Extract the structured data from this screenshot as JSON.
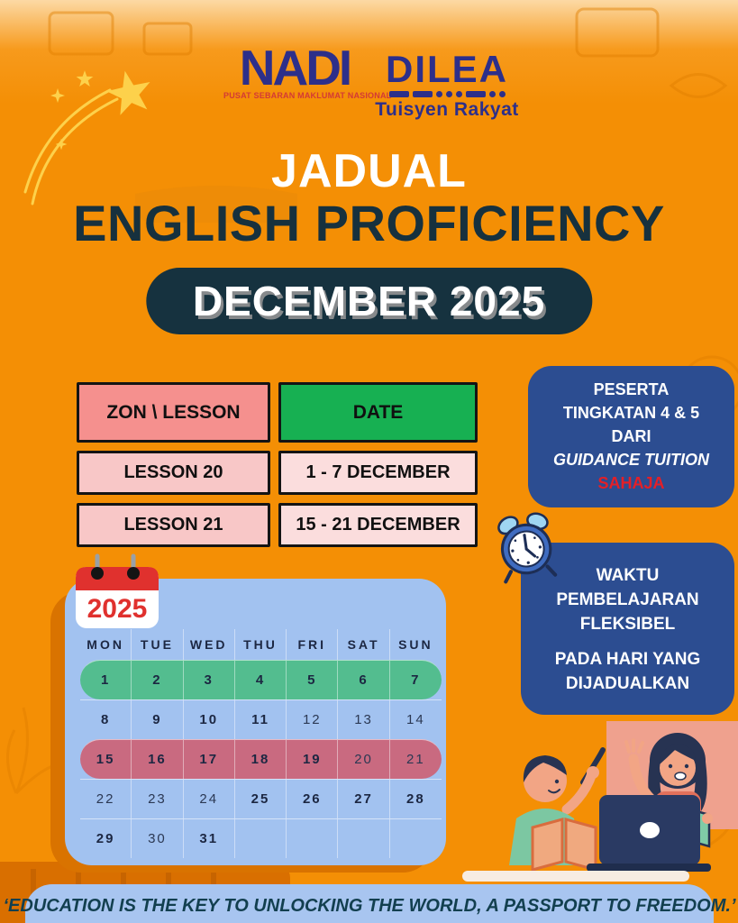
{
  "colors": {
    "background_orange": "#f48f05",
    "title_navy": "#17313e",
    "logo_indigo": "#2d2f8a",
    "nadi_tagline_red": "#d43a35",
    "table_header_pink": "#f5908e",
    "table_header_green": "#17b052",
    "table_row_pink": "#f8c7c7",
    "table_row_light_pink": "#fbdddd",
    "info_box_blue": "#2c4d91",
    "sahaja_red": "#e41f27",
    "calendar_blue": "#a2c2f0",
    "week_highlight_green": "#53bd8f",
    "week_highlight_rose": "#c96a80",
    "quote_banner_blue": "#a8c5f0"
  },
  "logos": {
    "nadi": {
      "name": "NADI",
      "tagline": "PUSAT SEBARAN MAKLUMAT NASIONAL"
    },
    "dilea": {
      "name": "DILEA",
      "tagline": "Tuisyen Rakyat"
    }
  },
  "header": {
    "title_top": "JADUAL",
    "title_main": "ENGLISH PROFICIENCY",
    "month_badge": "DECEMBER 2025"
  },
  "schedule": {
    "header": {
      "zon": "ZON \\ LESSON",
      "date": "DATE"
    },
    "rows": [
      {
        "lesson": "LESSON 20",
        "date": "1 - 7 DECEMBER"
      },
      {
        "lesson": "LESSON 21",
        "date": "15 - 21 DECEMBER"
      }
    ]
  },
  "info_box_participants": {
    "line1": "PESERTA",
    "line2": "TINGKATAN 4 & 5",
    "line3": "DARI",
    "line4": "GUIDANCE TUITION",
    "line5": "SAHAJA"
  },
  "info_box_schedule": {
    "para1": "WAKTU PEMBELAJARAN FLEKSIBEL",
    "para2": "PADA HARI YANG DIJADUALKAN"
  },
  "calendar": {
    "year": "2025",
    "day_headers": [
      "MON",
      "TUE",
      "WED",
      "THU",
      "FRI",
      "SAT",
      "SUN"
    ],
    "weeks": [
      {
        "highlight": "green",
        "days": [
          {
            "n": "1",
            "b": true
          },
          {
            "n": "2",
            "b": true
          },
          {
            "n": "3",
            "b": true
          },
          {
            "n": "4",
            "b": true
          },
          {
            "n": "5",
            "b": true
          },
          {
            "n": "6",
            "b": true
          },
          {
            "n": "7",
            "b": true
          }
        ]
      },
      {
        "highlight": null,
        "days": [
          {
            "n": "8",
            "b": true
          },
          {
            "n": "9",
            "b": true
          },
          {
            "n": "10",
            "b": true
          },
          {
            "n": "11",
            "b": true
          },
          {
            "n": "12",
            "b": false
          },
          {
            "n": "13",
            "b": false
          },
          {
            "n": "14",
            "b": false
          }
        ]
      },
      {
        "highlight": "rose",
        "days": [
          {
            "n": "15",
            "b": true
          },
          {
            "n": "16",
            "b": true
          },
          {
            "n": "17",
            "b": true
          },
          {
            "n": "18",
            "b": true
          },
          {
            "n": "19",
            "b": true
          },
          {
            "n": "20",
            "b": false
          },
          {
            "n": "21",
            "b": false
          }
        ]
      },
      {
        "highlight": null,
        "days": [
          {
            "n": "22",
            "b": false
          },
          {
            "n": "23",
            "b": false
          },
          {
            "n": "24",
            "b": false
          },
          {
            "n": "25",
            "b": true
          },
          {
            "n": "26",
            "b": true
          },
          {
            "n": "27",
            "b": true
          },
          {
            "n": "28",
            "b": true
          }
        ]
      },
      {
        "highlight": null,
        "days": [
          {
            "n": "29",
            "b": true
          },
          {
            "n": "30",
            "b": false
          },
          {
            "n": "31",
            "b": true
          },
          {
            "n": "",
            "b": false
          },
          {
            "n": "",
            "b": false
          },
          {
            "n": "",
            "b": false
          },
          {
            "n": "",
            "b": false
          }
        ]
      }
    ]
  },
  "quote": {
    "text": "‘EDUCATION IS THE KEY TO UNLOCKING THE WORLD, A PASSPORT TO FREEDOM.’"
  },
  "icons": {
    "shooting_star": "shooting-star-icon",
    "alarm_clock": "alarm-clock-icon",
    "calendar_year": "calendar-year-icon",
    "students_illustration": "students-online-class-illustration"
  }
}
